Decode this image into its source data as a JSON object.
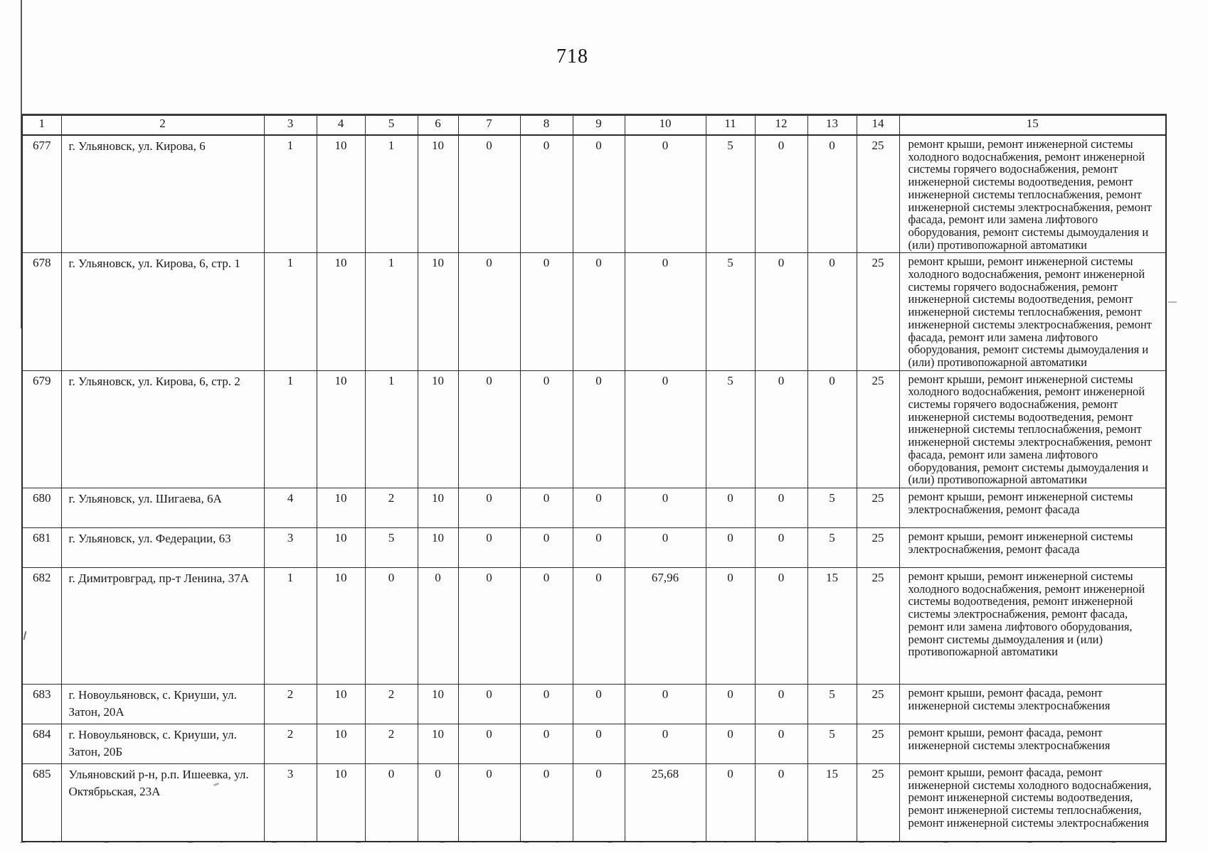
{
  "page": {
    "number": "718"
  },
  "table": {
    "headers": [
      "1",
      "2",
      "3",
      "4",
      "5",
      "6",
      "7",
      "8",
      "9",
      "10",
      "11",
      "12",
      "13",
      "14",
      "15"
    ],
    "rows": [
      {
        "cells": [
          "677",
          "г. Ульяновск, ул. Кирова, 6",
          "1",
          "10",
          "1",
          "10",
          "0",
          "0",
          "0",
          "0",
          "5",
          "0",
          "0",
          "25",
          "ремонт крыши, ремонт инженерной системы холодного водоснабжения, ремонт инженерной системы горячего водоснабжения, ремонт инженерной системы водоотведения, ремонт инженерной системы теплоснабжения, ремонт инженерной системы электроснабжения, ремонт фасада, ремонт или замена лифтового оборудования, ремонт системы дымоудаления и (или) противопожарной автоматики"
        ]
      },
      {
        "cells": [
          "678",
          "г. Ульяновск, ул. Кирова, 6, стр. 1",
          "1",
          "10",
          "1",
          "10",
          "0",
          "0",
          "0",
          "0",
          "5",
          "0",
          "0",
          "25",
          "ремонт крыши, ремонт инженерной системы холодного водоснабжения, ремонт инженерной системы горячего водоснабжения, ремонт инженерной системы водоотведения, ремонт инженерной системы теплоснабжения, ремонт инженерной системы электроснабжения, ремонт фасада, ремонт или замена лифтового оборудования, ремонт системы дымоудаления и (или) противопожарной автоматики"
        ]
      },
      {
        "cells": [
          "679",
          "г. Ульяновск, ул. Кирова, 6, стр. 2",
          "1",
          "10",
          "1",
          "10",
          "0",
          "0",
          "0",
          "0",
          "5",
          "0",
          "0",
          "25",
          "ремонт крыши, ремонт инженерной системы холодного водоснабжения, ремонт инженерной системы горячего водоснабжения, ремонт инженерной системы водоотведения, ремонт инженерной системы теплоснабжения, ремонт инженерной системы электроснабжения, ремонт фасада, ремонт или замена лифтового оборудования, ремонт системы дымоудаления и (или) противопожарной автоматики"
        ]
      },
      {
        "cells": [
          "680",
          "г. Ульяновск, ул. Шигаева, 6А",
          "4",
          "10",
          "2",
          "10",
          "0",
          "0",
          "0",
          "0",
          "0",
          "0",
          "5",
          "25",
          "ремонт крыши, ремонт инженерной системы электроснабжения, ремонт фасада"
        ]
      },
      {
        "cells": [
          "681",
          "г. Ульяновск, ул. Федерации, 63",
          "3",
          "10",
          "5",
          "10",
          "0",
          "0",
          "0",
          "0",
          "0",
          "0",
          "5",
          "25",
          "ремонт крыши, ремонт инженерной системы электроснабжения, ремонт фасада"
        ]
      },
      {
        "cells": [
          "682",
          "г. Димитровград, пр-т Ленина, 37А",
          "1",
          "10",
          "0",
          "0",
          "0",
          "0",
          "0",
          "67,96",
          "0",
          "0",
          "15",
          "25",
          "ремонт крыши, ремонт инженерной системы холодного водоснабжения, ремонт инженерной системы водоотведения, ремонт инженерной системы электроснабжения, ремонт фасада, ремонт или замена лифтового оборудования, ремонт системы дымоудаления и (или) противопожарной автоматики"
        ]
      },
      {
        "cells": [
          "683",
          "г. Новоульяновск, с. Криуши, ул. Затон, 20А",
          "2",
          "10",
          "2",
          "10",
          "0",
          "0",
          "0",
          "0",
          "0",
          "0",
          "5",
          "25",
          "ремонт крыши, ремонт фасада, ремонт инженерной системы электроснабжения"
        ]
      },
      {
        "cells": [
          "684",
          "г. Новоульяновск, с. Криуши, ул. Затон, 20Б",
          "2",
          "10",
          "2",
          "10",
          "0",
          "0",
          "0",
          "0",
          "0",
          "0",
          "5",
          "25",
          "ремонт крыши, ремонт фасада, ремонт инженерной системы электроснабжения"
        ]
      },
      {
        "cells": [
          "685",
          "Ульяновский р-н, р.п. Ишеевка, ул. Октябрьская, 23А",
          "3",
          "10",
          "0",
          "0",
          "0",
          "0",
          "0",
          "25,68",
          "0",
          "0",
          "15",
          "25",
          "ремонт крыши, ремонт фасада, ремонт инженерной системы холодного водоснабжения, ремонт инженерной системы водоотведения, ремонт инженерной системы теплоснабжения, ремонт инженерной системы электроснабжения"
        ]
      }
    ]
  }
}
